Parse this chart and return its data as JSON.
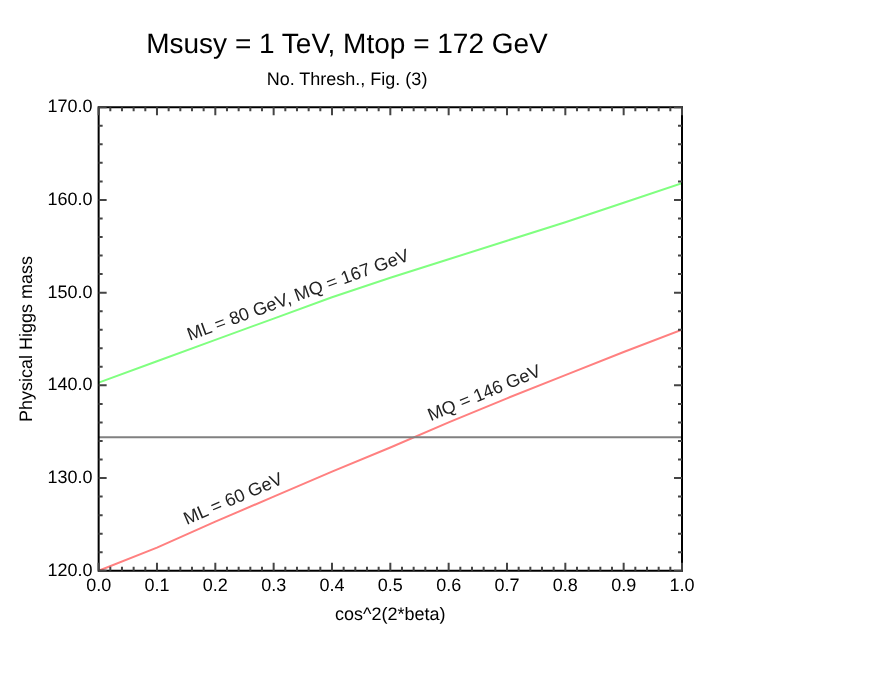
{
  "chart_data": {
    "type": "line",
    "title": "Msusy = 1 TeV, Mtop = 172 GeV",
    "subtitle": "No. Thresh., Fig. (3)",
    "xlabel": "cos^2(2*beta)",
    "ylabel": "Physical Higgs mass",
    "x": [
      0,
      0.1,
      0.2,
      0.3,
      0.4,
      0.5,
      0.6,
      0.7,
      0.8,
      0.9,
      1.0
    ],
    "series": [
      {
        "color": "#80ff80",
        "values": [
          140.3,
          142.6,
          144.9,
          147.2,
          149.5,
          151.6,
          153.6,
          155.6,
          157.6,
          159.7,
          161.8
        ]
      },
      {
        "color": "#ff8080",
        "values": [
          120,
          122.5,
          125.3,
          128.0,
          130.7,
          133.3,
          136.0,
          138.6,
          141.1,
          143.6,
          146.0
        ]
      }
    ],
    "xlim": [
      0,
      1
    ],
    "xticks": [
      {
        "value": 0,
        "label": "0.0"
      },
      {
        "value": 0.1,
        "label": "0.1"
      },
      {
        "value": 0.2,
        "label": "0.2"
      },
      {
        "value": 0.3,
        "label": "0.3"
      },
      {
        "value": 0.4,
        "label": "0.4"
      },
      {
        "value": 0.5,
        "label": "0.5"
      },
      {
        "value": 0.6,
        "label": "0.6"
      },
      {
        "value": 0.7,
        "label": "0.7"
      },
      {
        "value": 0.8,
        "label": "0.8"
      },
      {
        "value": 0.9,
        "label": "0.9"
      },
      {
        "value": 1,
        "label": "1.0"
      }
    ],
    "ylim": [
      120,
      170
    ],
    "yticks": [
      {
        "value": 120,
        "label": "120.0"
      },
      {
        "value": 130,
        "label": "130.0"
      },
      {
        "value": 140,
        "label": "140.0"
      },
      {
        "value": 150,
        "label": "150.0"
      },
      {
        "value": 160,
        "label": "160.0"
      },
      {
        "value": 170,
        "label": "170.0"
      }
    ],
    "ref_lines": [
      {
        "axis": "y",
        "value": 134.4,
        "color": "#808080"
      }
    ],
    "annotations": [
      {
        "text": "ML = 80 GeV, MQ = 167 GeV",
        "x": 0.35,
        "y": 148.35
      },
      {
        "text": "ML = 60 GeV",
        "x": 0.24,
        "y": 126.4
      },
      {
        "text": "MQ = 146 GeV",
        "x": 0.67,
        "y": 137.8
      }
    ],
    "grid": false,
    "legend": false,
    "marker": "none",
    "line_style": "solid"
  }
}
